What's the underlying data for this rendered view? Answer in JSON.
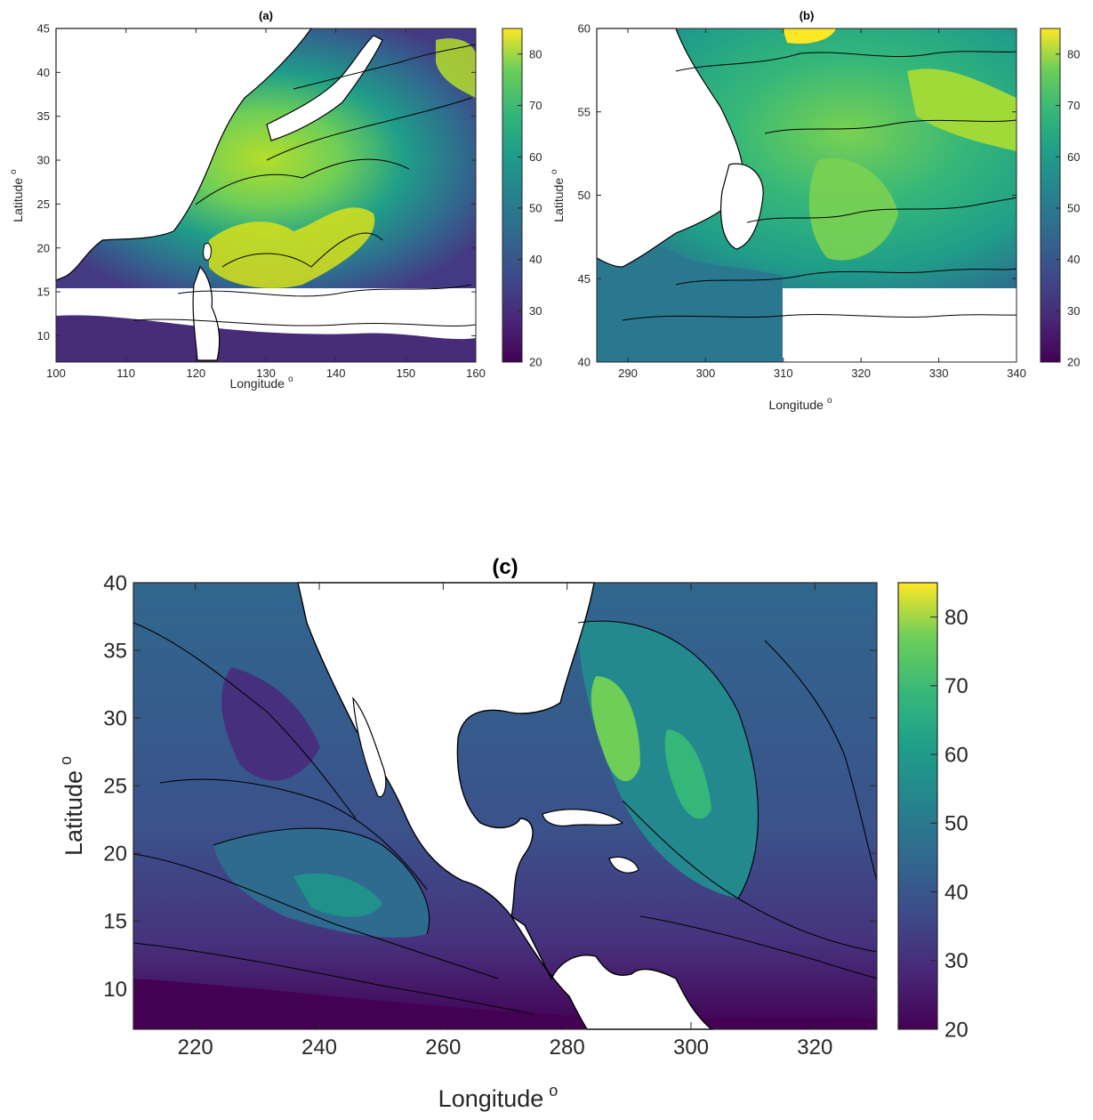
{
  "colors": {
    "ocean_low": "#440154",
    "ocean_mid": "#31688e",
    "ocean_teal": "#21918c",
    "ocean_green": "#5ec962",
    "ocean_high": "#fde725",
    "land": "#ffffff",
    "contour": "#000000"
  },
  "chart_data": [
    {
      "type": "heatmap",
      "title": "(a)",
      "xlabel": "Longitude",
      "xlabel_sup": "o",
      "ylabel": "Latitude",
      "ylabel_sup": "o",
      "xlim": [
        100,
        160
      ],
      "ylim": [
        7,
        45
      ],
      "xticks": [
        100,
        110,
        120,
        130,
        140,
        150,
        160
      ],
      "yticks": [
        10,
        15,
        20,
        25,
        30,
        35,
        40,
        45
      ],
      "colorbar": {
        "min": 20,
        "max": 85,
        "ticks": [
          20,
          30,
          40,
          50,
          60,
          70,
          80
        ],
        "colormap": "viridis"
      },
      "contours": true,
      "grid": false
    },
    {
      "type": "heatmap",
      "title": "(b)",
      "xlabel": "Longitude",
      "xlabel_sup": "o",
      "ylabel": "Latitude",
      "ylabel_sup": "o",
      "xlim": [
        286,
        340
      ],
      "ylim": [
        40,
        60
      ],
      "xticks": [
        290,
        300,
        310,
        320,
        330,
        340
      ],
      "yticks": [
        40,
        45,
        50,
        55,
        60
      ],
      "colorbar": {
        "min": 20,
        "max": 85,
        "ticks": [
          20,
          30,
          40,
          50,
          60,
          70,
          80
        ],
        "colormap": "viridis"
      },
      "contours": true,
      "grid": false
    },
    {
      "type": "heatmap",
      "title": "(c)",
      "xlabel": "Longitude",
      "xlabel_sup": "o",
      "ylabel": "Latitude",
      "ylabel_sup": "o",
      "xlim": [
        210,
        330
      ],
      "ylim": [
        7,
        40
      ],
      "xticks": [
        220,
        240,
        260,
        280,
        300,
        320
      ],
      "yticks": [
        10,
        15,
        20,
        25,
        30,
        35,
        40
      ],
      "colorbar": {
        "min": 20,
        "max": 85,
        "ticks": [
          20,
          30,
          40,
          50,
          60,
          70,
          80
        ],
        "colormap": "viridis"
      },
      "contours": true,
      "grid": false
    }
  ]
}
